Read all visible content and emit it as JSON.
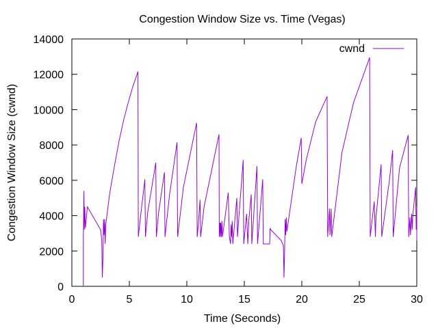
{
  "chart_data": {
    "type": "line",
    "title": "Congestion Window Size vs. Time (Vegas)",
    "xlabel": "Time (Seconds)",
    "ylabel": "Congestion Window Size (cwnd)",
    "xlim": [
      0,
      30
    ],
    "ylim": [
      0,
      14000
    ],
    "xticks": [
      0,
      5,
      10,
      15,
      20,
      25,
      30
    ],
    "yticks": [
      0,
      2000,
      4000,
      6000,
      8000,
      10000,
      12000,
      14000
    ],
    "grid": false,
    "legend_position": "top-right",
    "series": [
      {
        "name": "cwnd",
        "color": "#9400d3",
        "points": [
          [
            1.0,
            0
          ],
          [
            1.0,
            2800
          ],
          [
            1.05,
            5400
          ],
          [
            1.08,
            3200
          ],
          [
            1.12,
            4500
          ],
          [
            1.18,
            3300
          ],
          [
            1.35,
            4500
          ],
          [
            2.5,
            3200
          ],
          [
            2.6,
            2600
          ],
          [
            2.65,
            500
          ],
          [
            2.7,
            1500
          ],
          [
            2.75,
            3800
          ],
          [
            2.8,
            2900
          ],
          [
            2.85,
            3800
          ],
          [
            2.9,
            2400
          ],
          [
            2.95,
            3500
          ],
          [
            3.3,
            5300
          ],
          [
            3.7,
            6800
          ],
          [
            4.1,
            8200
          ],
          [
            4.5,
            9400
          ],
          [
            4.9,
            10400
          ],
          [
            5.3,
            11300
          ],
          [
            5.75,
            12150
          ],
          [
            5.78,
            2800
          ],
          [
            6.0,
            4100
          ],
          [
            6.35,
            6050
          ],
          [
            6.4,
            2800
          ],
          [
            6.6,
            4200
          ],
          [
            7.3,
            7000
          ],
          [
            7.35,
            2800
          ],
          [
            7.55,
            4200
          ],
          [
            8.05,
            6450
          ],
          [
            8.1,
            2800
          ],
          [
            8.5,
            5200
          ],
          [
            9.15,
            8150
          ],
          [
            9.2,
            2800
          ],
          [
            9.7,
            5600
          ],
          [
            10.85,
            9250
          ],
          [
            10.9,
            2800
          ],
          [
            11.0,
            3500
          ],
          [
            11.15,
            4900
          ],
          [
            11.2,
            2800
          ],
          [
            11.5,
            4500
          ],
          [
            12.8,
            8600
          ],
          [
            12.82,
            2800
          ],
          [
            12.88,
            3600
          ],
          [
            12.92,
            2800
          ],
          [
            12.95,
            3600
          ],
          [
            13.0,
            2800
          ],
          [
            13.05,
            3700
          ],
          [
            13.1,
            2800
          ],
          [
            13.6,
            5300
          ],
          [
            13.7,
            2800
          ],
          [
            13.8,
            2400
          ],
          [
            13.85,
            3500
          ],
          [
            13.9,
            2800
          ],
          [
            13.95,
            3700
          ],
          [
            14.0,
            2400
          ],
          [
            14.35,
            5000
          ],
          [
            14.4,
            2800
          ],
          [
            14.9,
            7150
          ],
          [
            14.95,
            2400
          ],
          [
            15.2,
            4100
          ],
          [
            15.3,
            2400
          ],
          [
            15.4,
            3800
          ],
          [
            15.6,
            5200
          ],
          [
            15.65,
            2400
          ],
          [
            16.1,
            6800
          ],
          [
            16.15,
            2400
          ],
          [
            16.6,
            6050
          ],
          [
            16.65,
            2400
          ],
          [
            17.2,
            2400
          ],
          [
            17.25,
            3300
          ],
          [
            17.3,
            3200
          ],
          [
            18.2,
            2600
          ],
          [
            18.4,
            2300
          ],
          [
            18.45,
            500
          ],
          [
            18.5,
            1800
          ],
          [
            18.55,
            3800
          ],
          [
            18.6,
            2900
          ],
          [
            18.65,
            3900
          ],
          [
            18.7,
            3100
          ],
          [
            19.5,
            6700
          ],
          [
            19.95,
            8400
          ],
          [
            20.0,
            5800
          ],
          [
            20.4,
            7200
          ],
          [
            21.2,
            9300
          ],
          [
            22.2,
            10750
          ],
          [
            22.25,
            2800
          ],
          [
            22.4,
            4400
          ],
          [
            22.45,
            2900
          ],
          [
            22.55,
            4400
          ],
          [
            22.6,
            2800
          ],
          [
            23.5,
            7600
          ],
          [
            24.5,
            10400
          ],
          [
            25.9,
            12950
          ],
          [
            25.95,
            2800
          ],
          [
            26.3,
            4800
          ],
          [
            26.4,
            2800
          ],
          [
            26.45,
            3900
          ],
          [
            26.9,
            6900
          ],
          [
            26.95,
            2800
          ],
          [
            27.6,
            5900
          ],
          [
            27.9,
            7700
          ],
          [
            27.95,
            2800
          ],
          [
            28.5,
            6700
          ],
          [
            29.25,
            8550
          ],
          [
            29.3,
            2800
          ],
          [
            29.4,
            3900
          ],
          [
            29.45,
            2900
          ],
          [
            29.55,
            4100
          ],
          [
            29.6,
            3200
          ],
          [
            29.65,
            4000
          ],
          [
            29.9,
            5600
          ],
          [
            29.95,
            3200
          ],
          [
            30.0,
            4500
          ],
          [
            30.0,
            2600
          ]
        ]
      }
    ]
  }
}
